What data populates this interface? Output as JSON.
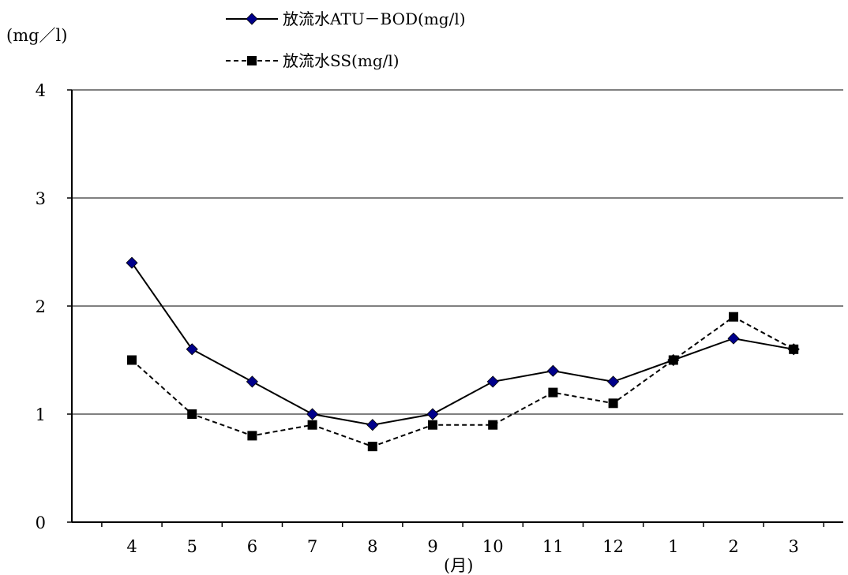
{
  "chart_data": {
    "type": "line",
    "title": "",
    "ylabel": "(mg／l)",
    "xlabel": "(月)",
    "categories": [
      "4",
      "5",
      "6",
      "7",
      "8",
      "9",
      "10",
      "11",
      "12",
      "1",
      "2",
      "3"
    ],
    "ylim": [
      0,
      4
    ],
    "yticks": [
      "0",
      "1",
      "2",
      "3",
      "4"
    ],
    "grid": true,
    "legend_position": "top-center",
    "series": [
      {
        "name": "放流水ATU－BOD(mg/l)",
        "values": [
          2.4,
          1.6,
          1.3,
          1.0,
          0.9,
          1.0,
          1.3,
          1.4,
          1.3,
          1.5,
          1.7,
          1.6
        ],
        "line_style": "solid",
        "marker": "diamond",
        "color": "#00008B"
      },
      {
        "name": "放流水SS(mg/l)",
        "values": [
          1.5,
          1.0,
          0.8,
          0.9,
          0.7,
          0.9,
          0.9,
          1.2,
          1.1,
          1.5,
          1.9,
          1.6
        ],
        "line_style": "dashed",
        "marker": "square",
        "color": "#000000"
      }
    ]
  }
}
